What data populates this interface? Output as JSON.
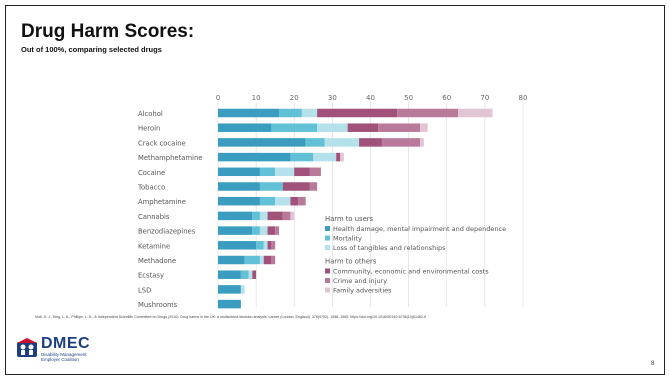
{
  "slide": {
    "title": "Drug Harm Scores:",
    "subtitle": "Out of 100%, comparing selected drugs",
    "citation": "Nutt, D. J., King, L. A., Phillips, L. D., & Independent Scientific Committee on Drugs (2010). Drug harms in the UK: a multicriteria decision analysis. Lancet (London, England), 376(9752), 1558–1565. https://doi.org/10.1016/S0140-6736(10)61462-6",
    "page_number": "8",
    "logo": {
      "name": "DMEC",
      "line1": "Disability Management",
      "line2": "Employer Coalition"
    }
  },
  "chart_data": {
    "type": "bar",
    "orientation": "horizontal",
    "stacked": true,
    "categories": [
      "Alcohol",
      "Heroin",
      "Crack cocaine",
      "Methamphetamine",
      "Cocaine",
      "Tobacco",
      "Amphetamine",
      "Cannabis",
      "Benzodiazepines",
      "Ketamine",
      "Methadone",
      "Ecstasy",
      "LSD",
      "Mushrooms"
    ],
    "xlim": [
      0,
      80
    ],
    "xticks": [
      0,
      10,
      20,
      30,
      40,
      50,
      60,
      70,
      80
    ],
    "grid": true,
    "legend_position": "bottom-right",
    "legend_groups": [
      {
        "title": "Harm to users",
        "series_indices": [
          0,
          1,
          2
        ]
      },
      {
        "title": "Harm to others",
        "series_indices": [
          3,
          4,
          5
        ]
      }
    ],
    "series": [
      {
        "name": "Health damage, mental impairment and dependence",
        "color": "#3a9dbf",
        "values": [
          16,
          14,
          23,
          19,
          11,
          11,
          11,
          9,
          9,
          10,
          7,
          6,
          6,
          6
        ]
      },
      {
        "name": "Mortality",
        "color": "#62c1d6",
        "values": [
          6,
          12,
          5,
          6,
          4,
          6,
          4,
          2,
          2,
          2,
          4,
          2,
          0,
          0
        ]
      },
      {
        "name": "Loss of tangibles and relationships",
        "color": "#b5e1ea",
        "values": [
          4,
          8,
          9,
          6,
          5,
          0,
          4,
          2,
          2,
          1,
          1,
          1,
          1,
          0
        ]
      },
      {
        "name": "Community, economic and environmental costs",
        "color": "#a0527a",
        "values": [
          21,
          8,
          6,
          1,
          4,
          7,
          2,
          4,
          2,
          1,
          2,
          1,
          0,
          0
        ]
      },
      {
        "name": "Crime and injury",
        "color": "#b97a9a",
        "values": [
          16,
          11,
          10,
          0,
          3,
          2,
          2,
          2,
          1,
          1,
          1,
          0,
          0,
          0
        ]
      },
      {
        "name": "Family adversities",
        "color": "#e2c5d3",
        "values": [
          9,
          2,
          1,
          1,
          0,
          0,
          0,
          1,
          0,
          0,
          0,
          0,
          0,
          0
        ]
      }
    ]
  }
}
